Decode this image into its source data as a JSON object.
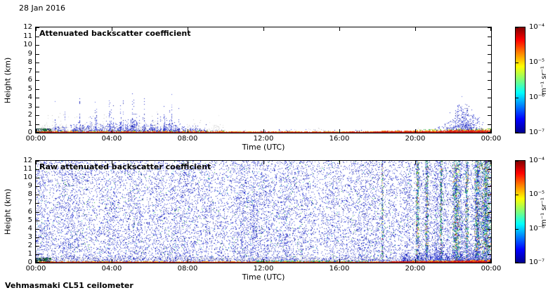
{
  "figure": {
    "date": "28 Jan 2016",
    "footer": "Vehmasmaki CL51 ceilometer"
  },
  "colorbar": {
    "ticks": [
      "10⁻⁴",
      "10⁻⁵",
      "10⁻⁶",
      "10⁻⁷"
    ],
    "unit": "m⁻¹ sr⁻¹",
    "scale": "log",
    "min": "1e-7",
    "max": "1e-4"
  },
  "chart_data": [
    {
      "type": "heatmap",
      "title": "Attenuated backscatter coefficient",
      "xlabel": "Time (UTC)",
      "ylabel": "Height (km)",
      "x_range_hours": [
        0,
        24
      ],
      "xticks": [
        "00:00",
        "04:00",
        "08:00",
        "12:00",
        "16:00",
        "20:00",
        "00:00"
      ],
      "yticks": [
        0,
        1,
        2,
        3,
        4,
        5,
        6,
        7,
        8,
        9,
        10,
        11,
        12
      ],
      "ylim_km": [
        0,
        12
      ],
      "colorbar": {
        "scale": "log",
        "min": "1e-7",
        "max": "1e-4",
        "unit": "m⁻¹ sr⁻¹"
      },
      "features": {
        "gray_haze": {
          "hours": [
            0,
            10
          ],
          "top_km": 1.6
        },
        "shallow_layer": {
          "top_km": 0.5
        },
        "aerosol_spikes": {
          "hours": [
            0.3,
            9.4
          ],
          "base_km": 1.3,
          "max_top_km": 7.5,
          "spike_prob": 0.28
        },
        "evening_cloud": {
          "hours": [
            20.3,
            23.7
          ],
          "peak_hour": 22.6,
          "peak_km": 3.2
        },
        "surface_layer": {
          "base_km": 0.12,
          "thick_end_km": 0.3,
          "thicken_after_hour": 16
        }
      }
    },
    {
      "type": "heatmap",
      "title": "Raw attenuated backscatter coefficient",
      "xlabel": "Time (UTC)",
      "ylabel": "Height (km)",
      "x_range_hours": [
        0,
        24
      ],
      "xticks": [
        "00:00",
        "04:00",
        "08:00",
        "12:00",
        "16:00",
        "20:00",
        "00:00"
      ],
      "yticks": [
        0,
        1,
        2,
        3,
        4,
        5,
        6,
        7,
        8,
        9,
        10,
        11,
        12
      ],
      "ylim_km": [
        0,
        12
      ],
      "colorbar": {
        "scale": "log",
        "min": "1e-7",
        "max": "1e-4",
        "unit": "m⁻¹ sr⁻¹"
      },
      "features": {
        "noise_density": 0.16,
        "dense_stripes": [
          [
            5.5,
            0.3,
            1.25
          ],
          [
            10.9,
            0.35,
            1.5
          ],
          [
            11.5,
            0.45,
            1.6
          ],
          [
            12.2,
            0.3,
            1.45
          ],
          [
            13.2,
            0.25,
            1.3
          ],
          [
            21.1,
            0.15,
            1.7
          ],
          [
            22.4,
            0.2,
            1.8
          ],
          [
            23.3,
            0.15,
            1.7
          ]
        ],
        "colored_stripes": [
          [
            18.25,
            0.06
          ],
          [
            20.1,
            0.1
          ],
          [
            20.6,
            0.1
          ],
          [
            21.35,
            0.08
          ],
          [
            22.15,
            0.22
          ],
          [
            22.7,
            0.1
          ],
          [
            23.25,
            0.15
          ],
          [
            23.7,
            0.3
          ]
        ],
        "surface_band_km": 0.9,
        "bottom_structure_after_hour": 19.3,
        "surface_layer": {
          "base_km": 0.12,
          "thick_end_km": 0.3,
          "thicken_after_hour": 17
        }
      }
    }
  ]
}
